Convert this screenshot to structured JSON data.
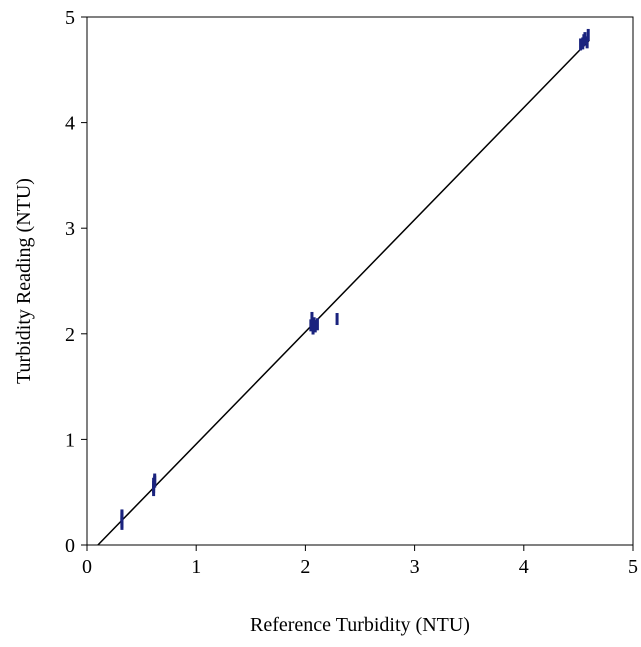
{
  "chart_data": {
    "type": "scatter",
    "title": "",
    "xlabel": "Reference Turbidity (NTU)",
    "ylabel": "Turbidity Reading (NTU)",
    "xlim": [
      0,
      5
    ],
    "ylim": [
      0,
      5
    ],
    "x_ticks": [
      "0",
      "1",
      "2",
      "3",
      "4",
      "5"
    ],
    "y_ticks": [
      "0",
      "1",
      "2",
      "3",
      "4",
      "5"
    ],
    "grid": false,
    "legend": "none",
    "marker_color": "#1a237e",
    "series": [
      {
        "points": [
          {
            "x": 0.32,
            "y": 0.2
          },
          {
            "x": 0.32,
            "y": 0.22
          },
          {
            "x": 0.32,
            "y": 0.25
          },
          {
            "x": 0.32,
            "y": 0.27
          },
          {
            "x": 0.32,
            "y": 0.28
          },
          {
            "x": 0.61,
            "y": 0.52
          },
          {
            "x": 0.61,
            "y": 0.55
          },
          {
            "x": 0.61,
            "y": 0.58
          },
          {
            "x": 0.62,
            "y": 0.6
          },
          {
            "x": 0.62,
            "y": 0.62
          },
          {
            "x": 2.05,
            "y": 2.08
          },
          {
            "x": 2.06,
            "y": 2.15
          },
          {
            "x": 2.07,
            "y": 2.05
          },
          {
            "x": 2.08,
            "y": 2.1
          },
          {
            "x": 2.09,
            "y": 2.07
          },
          {
            "x": 2.11,
            "y": 2.09
          },
          {
            "x": 2.29,
            "y": 2.14
          },
          {
            "x": 4.52,
            "y": 4.74
          },
          {
            "x": 4.54,
            "y": 4.75
          },
          {
            "x": 4.55,
            "y": 4.78
          },
          {
            "x": 4.56,
            "y": 4.8
          },
          {
            "x": 4.58,
            "y": 4.76
          },
          {
            "x": 4.59,
            "y": 4.83
          }
        ]
      }
    ],
    "fit_line": {
      "x": [
        0.1,
        4.6
      ],
      "y": [
        0.0,
        4.78
      ]
    }
  }
}
